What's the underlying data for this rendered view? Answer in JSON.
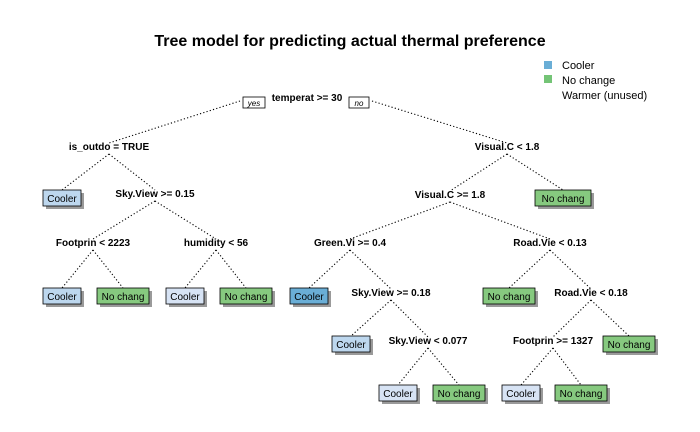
{
  "title": "Tree model for predicting actual thermal preference",
  "legend": [
    {
      "label": "Cooler",
      "color": "#6aaed6"
    },
    {
      "label": "No change",
      "color": "#74c476"
    },
    {
      "label": "Warmer (unused)",
      "color": null
    }
  ],
  "root_branch_labels": {
    "yes": "yes",
    "no": "no"
  },
  "splits": [
    {
      "id": "s1",
      "text": "temperat >= 30"
    },
    {
      "id": "s2",
      "text": "is_outdo = TRUE"
    },
    {
      "id": "s3",
      "text": "Visual.C < 1.8"
    },
    {
      "id": "s4",
      "text": "Sky.View >= 0.15"
    },
    {
      "id": "s5",
      "text": "Visual.C >= 1.8"
    },
    {
      "id": "s6",
      "text": "Footprin < 2223"
    },
    {
      "id": "s7",
      "text": "humidity < 56"
    },
    {
      "id": "s8",
      "text": "Green.Vi >= 0.4"
    },
    {
      "id": "s9",
      "text": "Road.Vie < 0.13"
    },
    {
      "id": "s10",
      "text": "Sky.View >= 0.18"
    },
    {
      "id": "s11",
      "text": "Road.Vie < 0.18"
    },
    {
      "id": "s12",
      "text": "Sky.View < 0.077"
    },
    {
      "id": "s13",
      "text": "Footprin >= 1327"
    }
  ],
  "leaves": [
    {
      "id": "l1",
      "label": "Cooler",
      "class": "cooler-light"
    },
    {
      "id": "l2",
      "label": "No chang",
      "class": "nochange"
    },
    {
      "id": "l3",
      "label": "Cooler",
      "class": "cooler-light"
    },
    {
      "id": "l4",
      "label": "No chang",
      "class": "nochange"
    },
    {
      "id": "l5",
      "label": "Cooler",
      "class": "cooler-pale"
    },
    {
      "id": "l6",
      "label": "No chang",
      "class": "nochange"
    },
    {
      "id": "l7",
      "label": "Cooler",
      "class": "cooler-dark"
    },
    {
      "id": "l8",
      "label": "No chang",
      "class": "nochange"
    },
    {
      "id": "l9",
      "label": "Cooler",
      "class": "cooler-light"
    },
    {
      "id": "l10",
      "label": "Cooler",
      "class": "cooler-pale"
    },
    {
      "id": "l11",
      "label": "No chang",
      "class": "nochange"
    },
    {
      "id": "l12",
      "label": "Cooler",
      "class": "cooler-pale"
    },
    {
      "id": "l13",
      "label": "No chang",
      "class": "nochange"
    },
    {
      "id": "l14",
      "label": "No chang",
      "class": "nochange"
    }
  ],
  "edges": [
    [
      "s1",
      "s2"
    ],
    [
      "s1",
      "s3"
    ],
    [
      "s2",
      "l1"
    ],
    [
      "s2",
      "s4"
    ],
    [
      "s3",
      "s5"
    ],
    [
      "s3",
      "l2"
    ],
    [
      "s4",
      "s6"
    ],
    [
      "s4",
      "s7"
    ],
    [
      "s6",
      "l3"
    ],
    [
      "s6",
      "l4"
    ],
    [
      "s7",
      "l5"
    ],
    [
      "s7",
      "l6"
    ],
    [
      "s5",
      "s8"
    ],
    [
      "s5",
      "s9"
    ],
    [
      "s8",
      "l7"
    ],
    [
      "s8",
      "s10"
    ],
    [
      "s9",
      "l8"
    ],
    [
      "s9",
      "s11"
    ],
    [
      "s10",
      "l9"
    ],
    [
      "s10",
      "s12"
    ],
    [
      "s11",
      "s13"
    ],
    [
      "s11",
      "l14"
    ],
    [
      "s12",
      "l10"
    ],
    [
      "s12",
      "l11"
    ],
    [
      "s13",
      "l12"
    ],
    [
      "s13",
      "l13"
    ]
  ],
  "colors": {
    "cooler-dark": "#6aaed6",
    "cooler-light": "#bdd7ee",
    "cooler-pale": "#d7e3f4",
    "nochange": "#86c97f",
    "legend_cooler": "#6aaed6",
    "legend_nochange": "#74c476"
  }
}
